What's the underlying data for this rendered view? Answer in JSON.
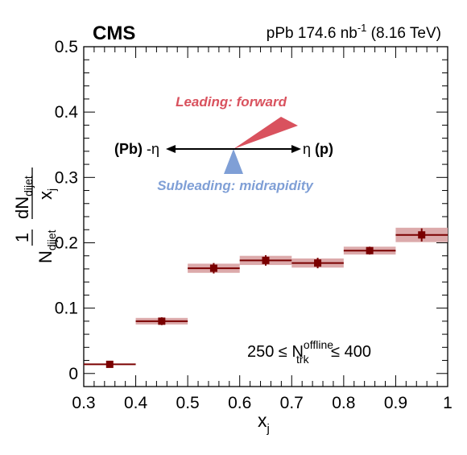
{
  "header": {
    "experiment": "CMS",
    "dataset_prefix": "pPb 174.6 nb",
    "dataset_exp": "-1",
    "dataset_suffix": " (8.16 TeV)"
  },
  "annotation": {
    "leading": "Leading: forward",
    "subleading": "Subleading: midrapidity",
    "left_label_bold": "(Pb)",
    "left_label_sym": " -η",
    "right_label_sym": "η ",
    "right_label_bold": "(p)",
    "leading_color": "#d9525e",
    "subleading_color": "#7f9fd6"
  },
  "selection": {
    "pre": "250 ≤ N",
    "sup": "offline",
    "sub": "trk",
    "post": " ≤ 400"
  },
  "axes": {
    "xlabel_main": "x",
    "xlabel_sub": "j",
    "ylabel_one": "1",
    "ylabel_den_main": "N",
    "ylabel_den_sub": "dijet",
    "ylabel_num_main": "dN",
    "ylabel_num_sub": "dijet",
    "ylabel_num_den_main": "x",
    "ylabel_num_den_sub": "j",
    "x_ticks": [
      "0.3",
      "0.4",
      "0.5",
      "0.6",
      "0.7",
      "0.8",
      "0.9",
      "1"
    ],
    "y_ticks": [
      "0",
      "0.1",
      "0.2",
      "0.3",
      "0.4",
      "0.5"
    ]
  },
  "chart_data": {
    "type": "scatter",
    "xlim": [
      0.3,
      1.0
    ],
    "ylim": [
      -0.02,
      0.5
    ],
    "marker_color": "#7a0000",
    "syst_color": "#dcaaab",
    "series": [
      {
        "x": [
          0.35,
          0.45,
          0.55,
          0.65,
          0.75,
          0.85,
          0.95
        ],
        "x_low": [
          0.3,
          0.4,
          0.5,
          0.6,
          0.7,
          0.8,
          0.9
        ],
        "x_high": [
          0.4,
          0.5,
          0.6,
          0.7,
          0.8,
          0.9,
          1.0
        ],
        "y": [
          0.014,
          0.08,
          0.161,
          0.173,
          0.169,
          0.188,
          0.212
        ],
        "stat_err": [
          0.004,
          0.006,
          0.008,
          0.008,
          0.008,
          0.006,
          0.01
        ],
        "syst_err": [
          0.0,
          0.005,
          0.007,
          0.007,
          0.007,
          0.006,
          0.011
        ]
      }
    ]
  }
}
